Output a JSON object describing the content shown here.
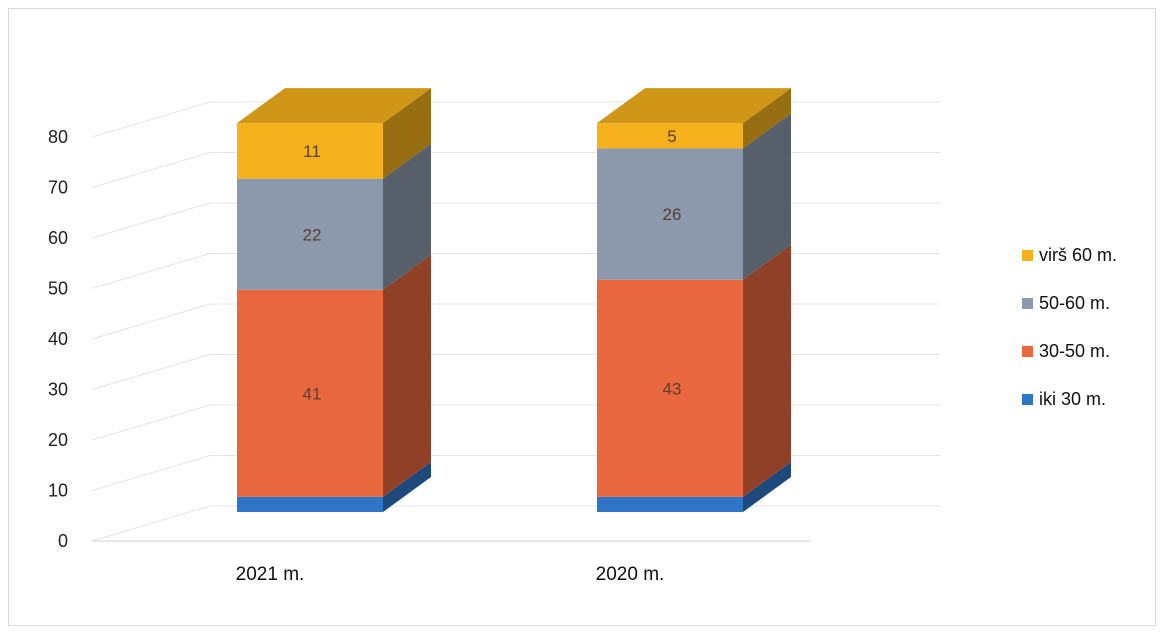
{
  "chart_data": {
    "type": "bar",
    "stacked": true,
    "three_d": true,
    "categories": [
      "2021 m.",
      "2020 m."
    ],
    "series": [
      {
        "name": "iki 30 m.",
        "values": [
          3,
          3
        ],
        "color": "#2e75c8",
        "data_labels": [
          "",
          ""
        ]
      },
      {
        "name": "30-50 m.",
        "values": [
          41,
          43
        ],
        "color": "#e8673e",
        "data_labels": [
          "41",
          "43"
        ]
      },
      {
        "name": "50-60 m.",
        "values": [
          22,
          26
        ],
        "color": "#8c99ad",
        "data_labels": [
          "22",
          "26"
        ]
      },
      {
        "name": "virš 60 m.",
        "values": [
          11,
          5
        ],
        "color": "#f4b11c",
        "data_labels": [
          "11",
          "5"
        ]
      }
    ],
    "y_ticks": [
      "0",
      "10",
      "20",
      "30",
      "40",
      "50",
      "60",
      "70",
      "80"
    ],
    "ylim": [
      0,
      80
    ],
    "grid": true,
    "legend_position": "right",
    "title": "",
    "xlabel": "",
    "ylabel": ""
  }
}
